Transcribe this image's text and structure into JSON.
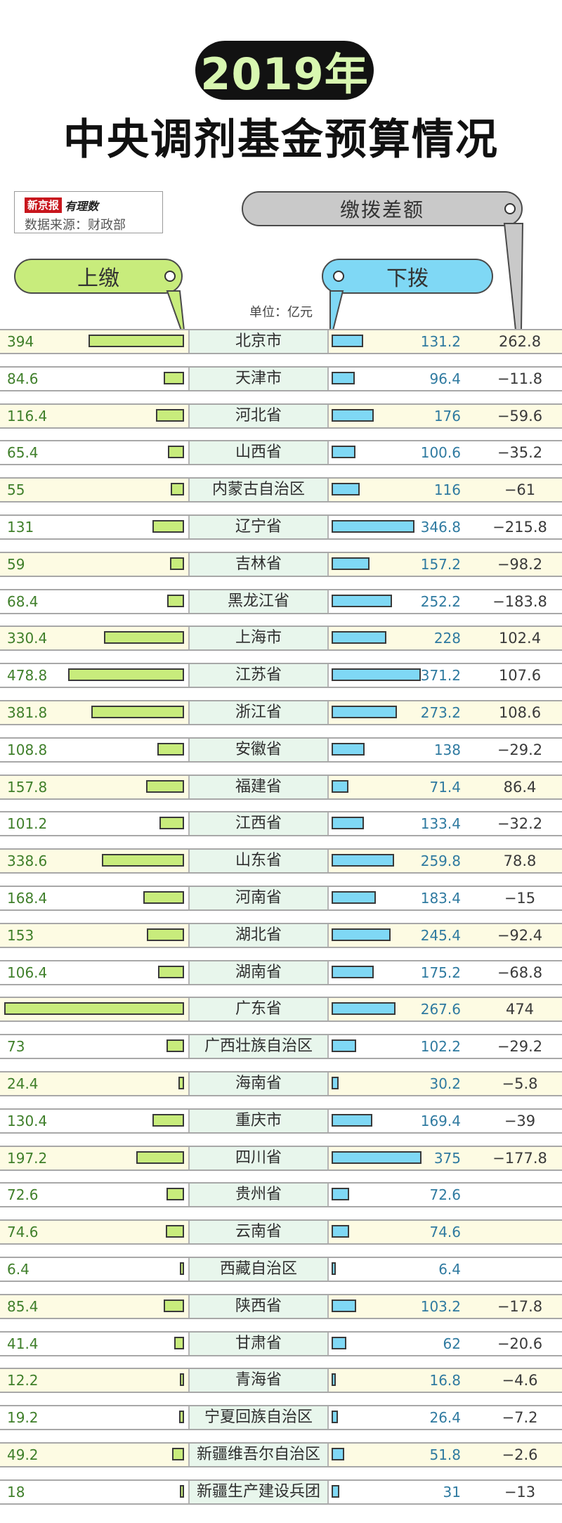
{
  "header": {
    "year": "2019年",
    "title": "中央调剂基金预算情况",
    "logo_text": "新京报",
    "logo_script": "有理数",
    "source": "数据来源：财政部",
    "diff_label": "缴拨差额",
    "up_label": "上缴",
    "down_label": "下拨",
    "unit": "单位：亿元"
  },
  "colors": {
    "up_bar": "#c8ec7c",
    "down_bar": "#7fd8f5",
    "name_cell": "#e8f6ec",
    "row_alt": "#fdfbe3",
    "year_text": "#d8f7b0"
  },
  "chart_data": {
    "type": "bar",
    "categories": [
      "北京市",
      "天津市",
      "河北省",
      "山西省",
      "内蒙古自治区",
      "辽宁省",
      "吉林省",
      "黑龙江省",
      "上海市",
      "江苏省",
      "浙江省",
      "安徽省",
      "福建省",
      "江西省",
      "山东省",
      "河南省",
      "湖北省",
      "湖南省",
      "广东省",
      "广西壮族自治区",
      "海南省",
      "重庆市",
      "四川省",
      "贵州省",
      "云南省",
      "西藏自治区",
      "陕西省",
      "甘肃省",
      "青海省",
      "宁夏回族自治区",
      "新疆维吾尔自治区",
      "新疆生产建设兵团"
    ],
    "series": [
      {
        "name": "上缴",
        "values": [
          394,
          84.6,
          116.4,
          65.4,
          55,
          131,
          59,
          68.4,
          330.4,
          478.8,
          381.8,
          108.8,
          157.8,
          101.2,
          338.6,
          168.4,
          153,
          106.4,
          741.6,
          73,
          24.4,
          130.4,
          197.2,
          72.6,
          74.6,
          6.4,
          85.4,
          41.4,
          12.2,
          19.2,
          49.2,
          18
        ]
      },
      {
        "name": "下拨",
        "values": [
          131.2,
          96.4,
          176,
          100.6,
          116,
          346.8,
          157.2,
          252.2,
          228,
          371.2,
          273.2,
          138,
          71.4,
          133.4,
          259.8,
          183.4,
          245.4,
          175.2,
          267.6,
          102.2,
          30.2,
          169.4,
          375,
          72.6,
          74.6,
          6.4,
          103.2,
          62,
          16.8,
          26.4,
          51.8,
          31
        ]
      },
      {
        "name": "缴拨差额",
        "values": [
          "262.8",
          "−11.8",
          "−59.6",
          "−35.2",
          "−61",
          "−215.8",
          "−98.2",
          "−183.8",
          "102.4",
          "107.6",
          "108.6",
          "−29.2",
          "86.4",
          "−32.2",
          "78.8",
          "−15",
          "−92.4",
          "−68.8",
          "474",
          "−29.2",
          "−5.8",
          "−39",
          "−177.8",
          "",
          "",
          "",
          "−17.8",
          "−20.6",
          "−4.6",
          "−7.2",
          "−2.6",
          "−13"
        ]
      }
    ],
    "up_scale_max": 741.6,
    "down_scale_max": 375
  }
}
